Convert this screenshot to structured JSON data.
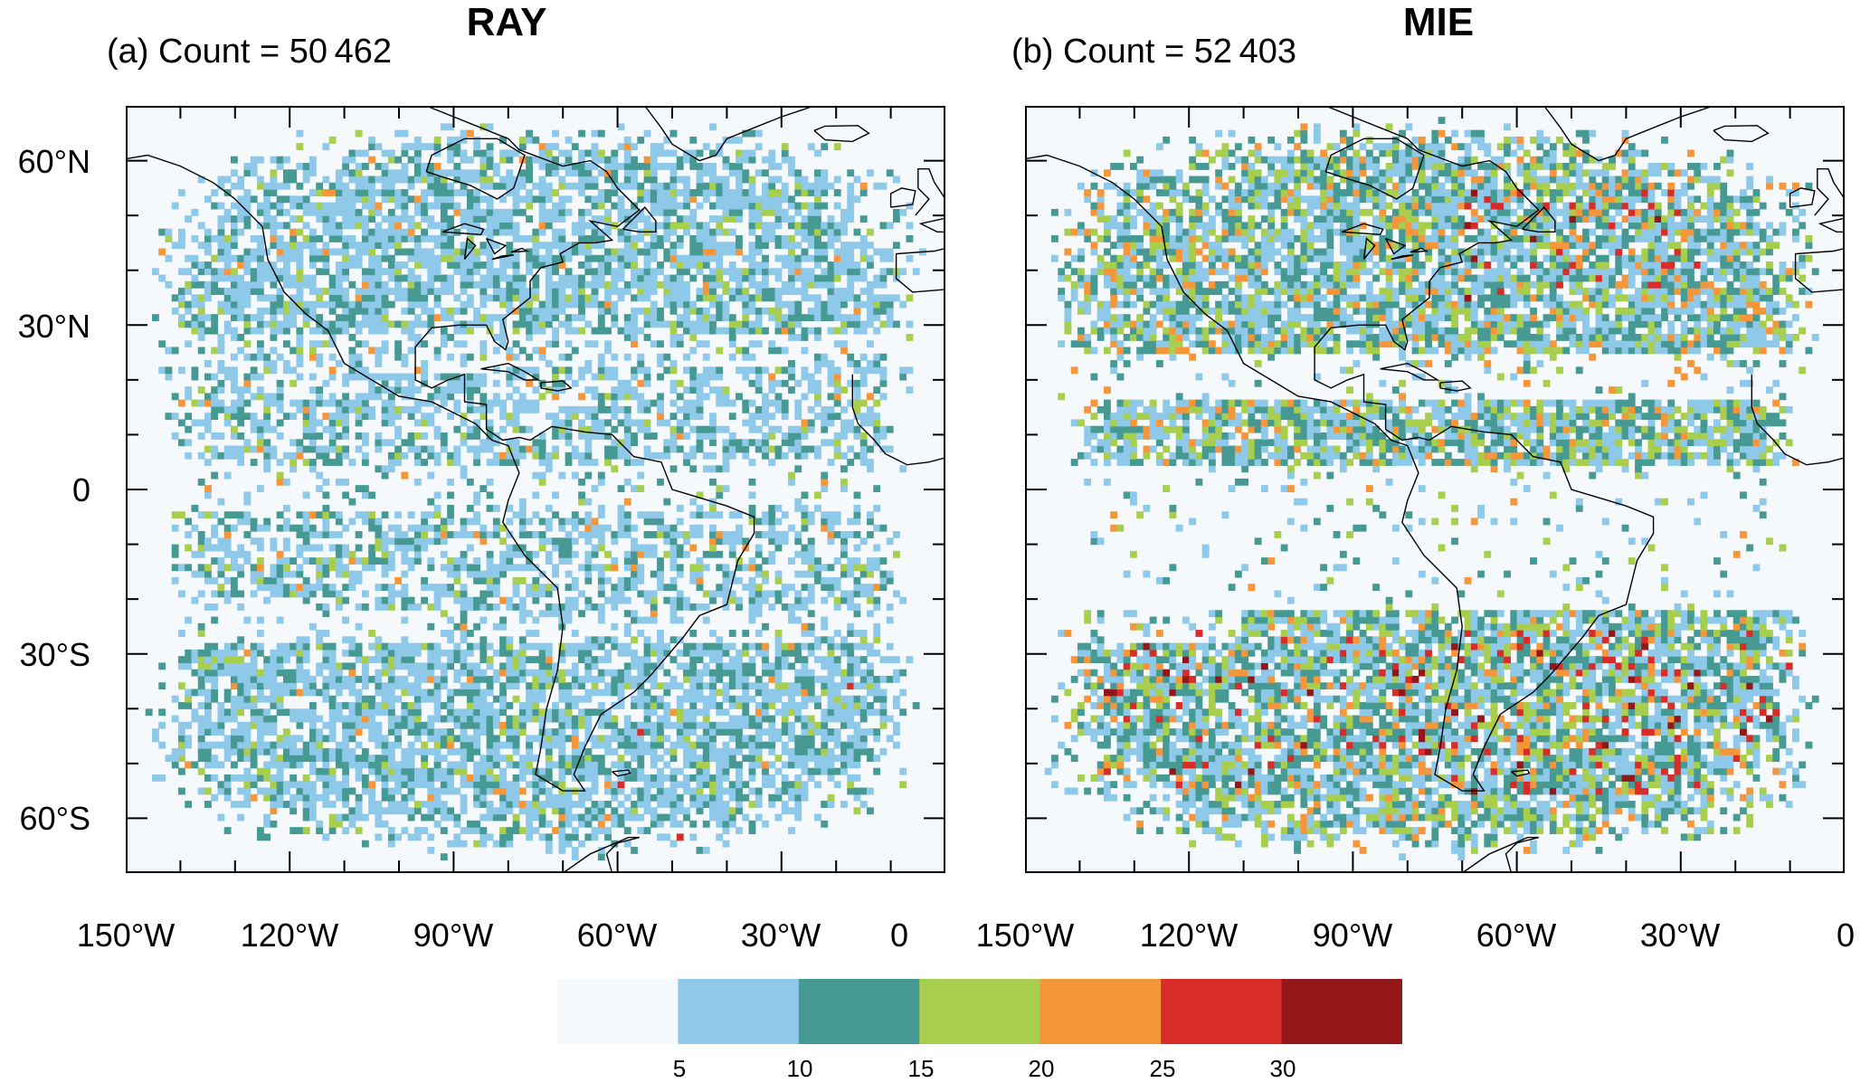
{
  "panels": [
    {
      "title": "RAY",
      "label": "(a) Count = 50 462"
    },
    {
      "title": "MIE",
      "label": "(b) Count = 52 403"
    }
  ],
  "lat_ticks": [
    "60°N",
    "30°N",
    "0",
    "30°S",
    "60°S"
  ],
  "lon_ticks": [
    "150°W",
    "120°W",
    "90°W",
    "60°W",
    "30°W",
    "0"
  ],
  "colorbar": {
    "labels": [
      "5",
      "10",
      "15",
      "20",
      "25",
      "30"
    ],
    "colors": [
      "#f5f9fc",
      "#8ec9ea",
      "#479a94",
      "#a7ce4c",
      "#f5963a",
      "#d72c28",
      "#931618"
    ]
  },
  "chart_data": {
    "type": "heatmap",
    "lon_range": [
      -150,
      0
    ],
    "lat_range": [
      -70,
      70
    ],
    "bin_thresholds": [
      5,
      10,
      15,
      20,
      25,
      30
    ],
    "series": [
      {
        "panel": "(a)",
        "title": "RAY",
        "count": 50462
      },
      {
        "panel": "(b)",
        "title": "MIE",
        "count": 52403
      }
    ]
  }
}
